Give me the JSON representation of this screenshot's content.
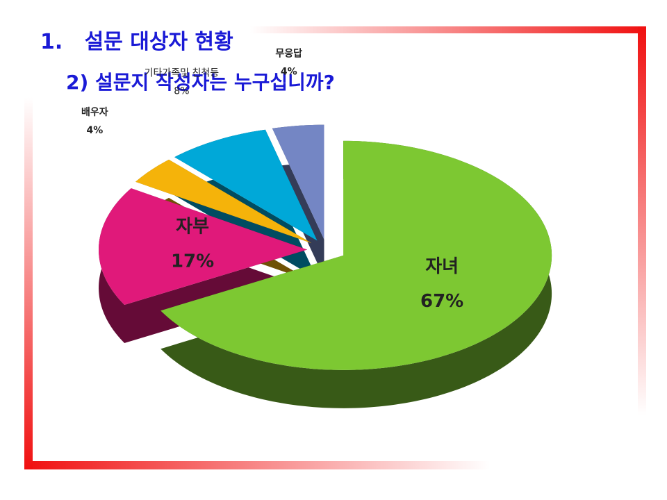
{
  "title": "1.   설문 대상자 현황",
  "chart_data": {
    "type": "pie3d",
    "title": "2) 설문지 작성자는 누구십니까?",
    "categories": [
      "자녀",
      "자부",
      "배우자",
      "기타가족및 친척등",
      "무응답"
    ],
    "values": [
      67,
      17,
      4,
      8,
      4
    ],
    "value_labels": [
      "67%",
      "17%",
      "4%",
      "8%",
      "4%"
    ],
    "colors": [
      "#7dc832",
      "#e0197a",
      "#f5b30a",
      "#00a8d8",
      "#7486c4"
    ]
  }
}
